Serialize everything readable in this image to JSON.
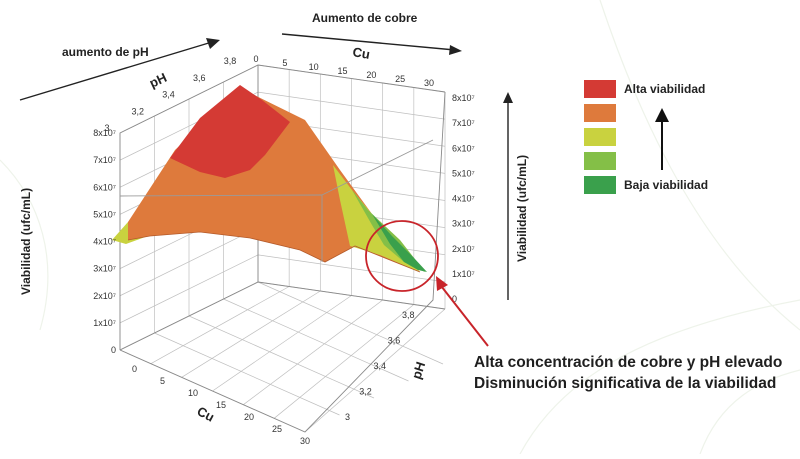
{
  "chart_data": {
    "type": "3d-surface",
    "title": "",
    "x_axis": {
      "label": "Cu",
      "ticks": [
        "0",
        "5",
        "10",
        "15",
        "20",
        "25",
        "30"
      ],
      "range": [
        0,
        30
      ]
    },
    "y_axis": {
      "label": "pH",
      "ticks": [
        "3",
        "3,2",
        "3,4",
        "3,6",
        "3,8"
      ],
      "range": [
        3,
        3.8
      ]
    },
    "z_axis": {
      "label": "Viabilidad (ufc/mL)",
      "ticks": [
        "0",
        "1x10⁷",
        "2x10⁷",
        "3x10⁷",
        "4x10⁷",
        "5x10⁷",
        "6x10⁷",
        "7x10⁷",
        "8x10⁷"
      ],
      "range": [
        0,
        80000000
      ]
    },
    "back_top_ticks": {
      "label": "Cu",
      "ticks": [
        "0",
        "5",
        "10",
        "15",
        "20",
        "25",
        "30"
      ]
    },
    "back_left_ticks": {
      "label": "pH",
      "ticks": [
        "3",
        "3,2",
        "3,4",
        "3,6",
        "3,8"
      ]
    },
    "right_axis_label": "Viabilidad (ufc/mL)",
    "right_axis_ticks": [
      "8x10⁷",
      "7x10⁷",
      "6x10⁷",
      "5x10⁷",
      "4x10⁷",
      "3x10⁷",
      "2x10⁷",
      "1x10⁷",
      "0"
    ],
    "legend": {
      "items": [
        {
          "label": "Alta viabilidad",
          "color": "#d43a34"
        },
        {
          "label": "",
          "color": "#de7a3c"
        },
        {
          "label": "",
          "color": "#c9d23f"
        },
        {
          "label": "",
          "color": "#84bf47"
        },
        {
          "label": "Baja viabilidad",
          "color": "#3aa04c"
        }
      ]
    },
    "trend_labels": {
      "ph": "aumento de pH",
      "cobre": "Aumento de cobre"
    },
    "annotation": {
      "line1": "Alta concentración de cobre y pH elevado",
      "line2": "Disminución significativa de la viabilidad",
      "color": "#c8242a"
    },
    "surface": {
      "peak": {
        "cu": 5,
        "ph": 3.8,
        "viabilidad": 80000000
      },
      "low_corner": {
        "cu": 30,
        "ph": 3.8,
        "viabilidad": 10000000
      },
      "levels": [
        "alta",
        "media-alta",
        "media",
        "media-baja",
        "baja"
      ]
    }
  }
}
